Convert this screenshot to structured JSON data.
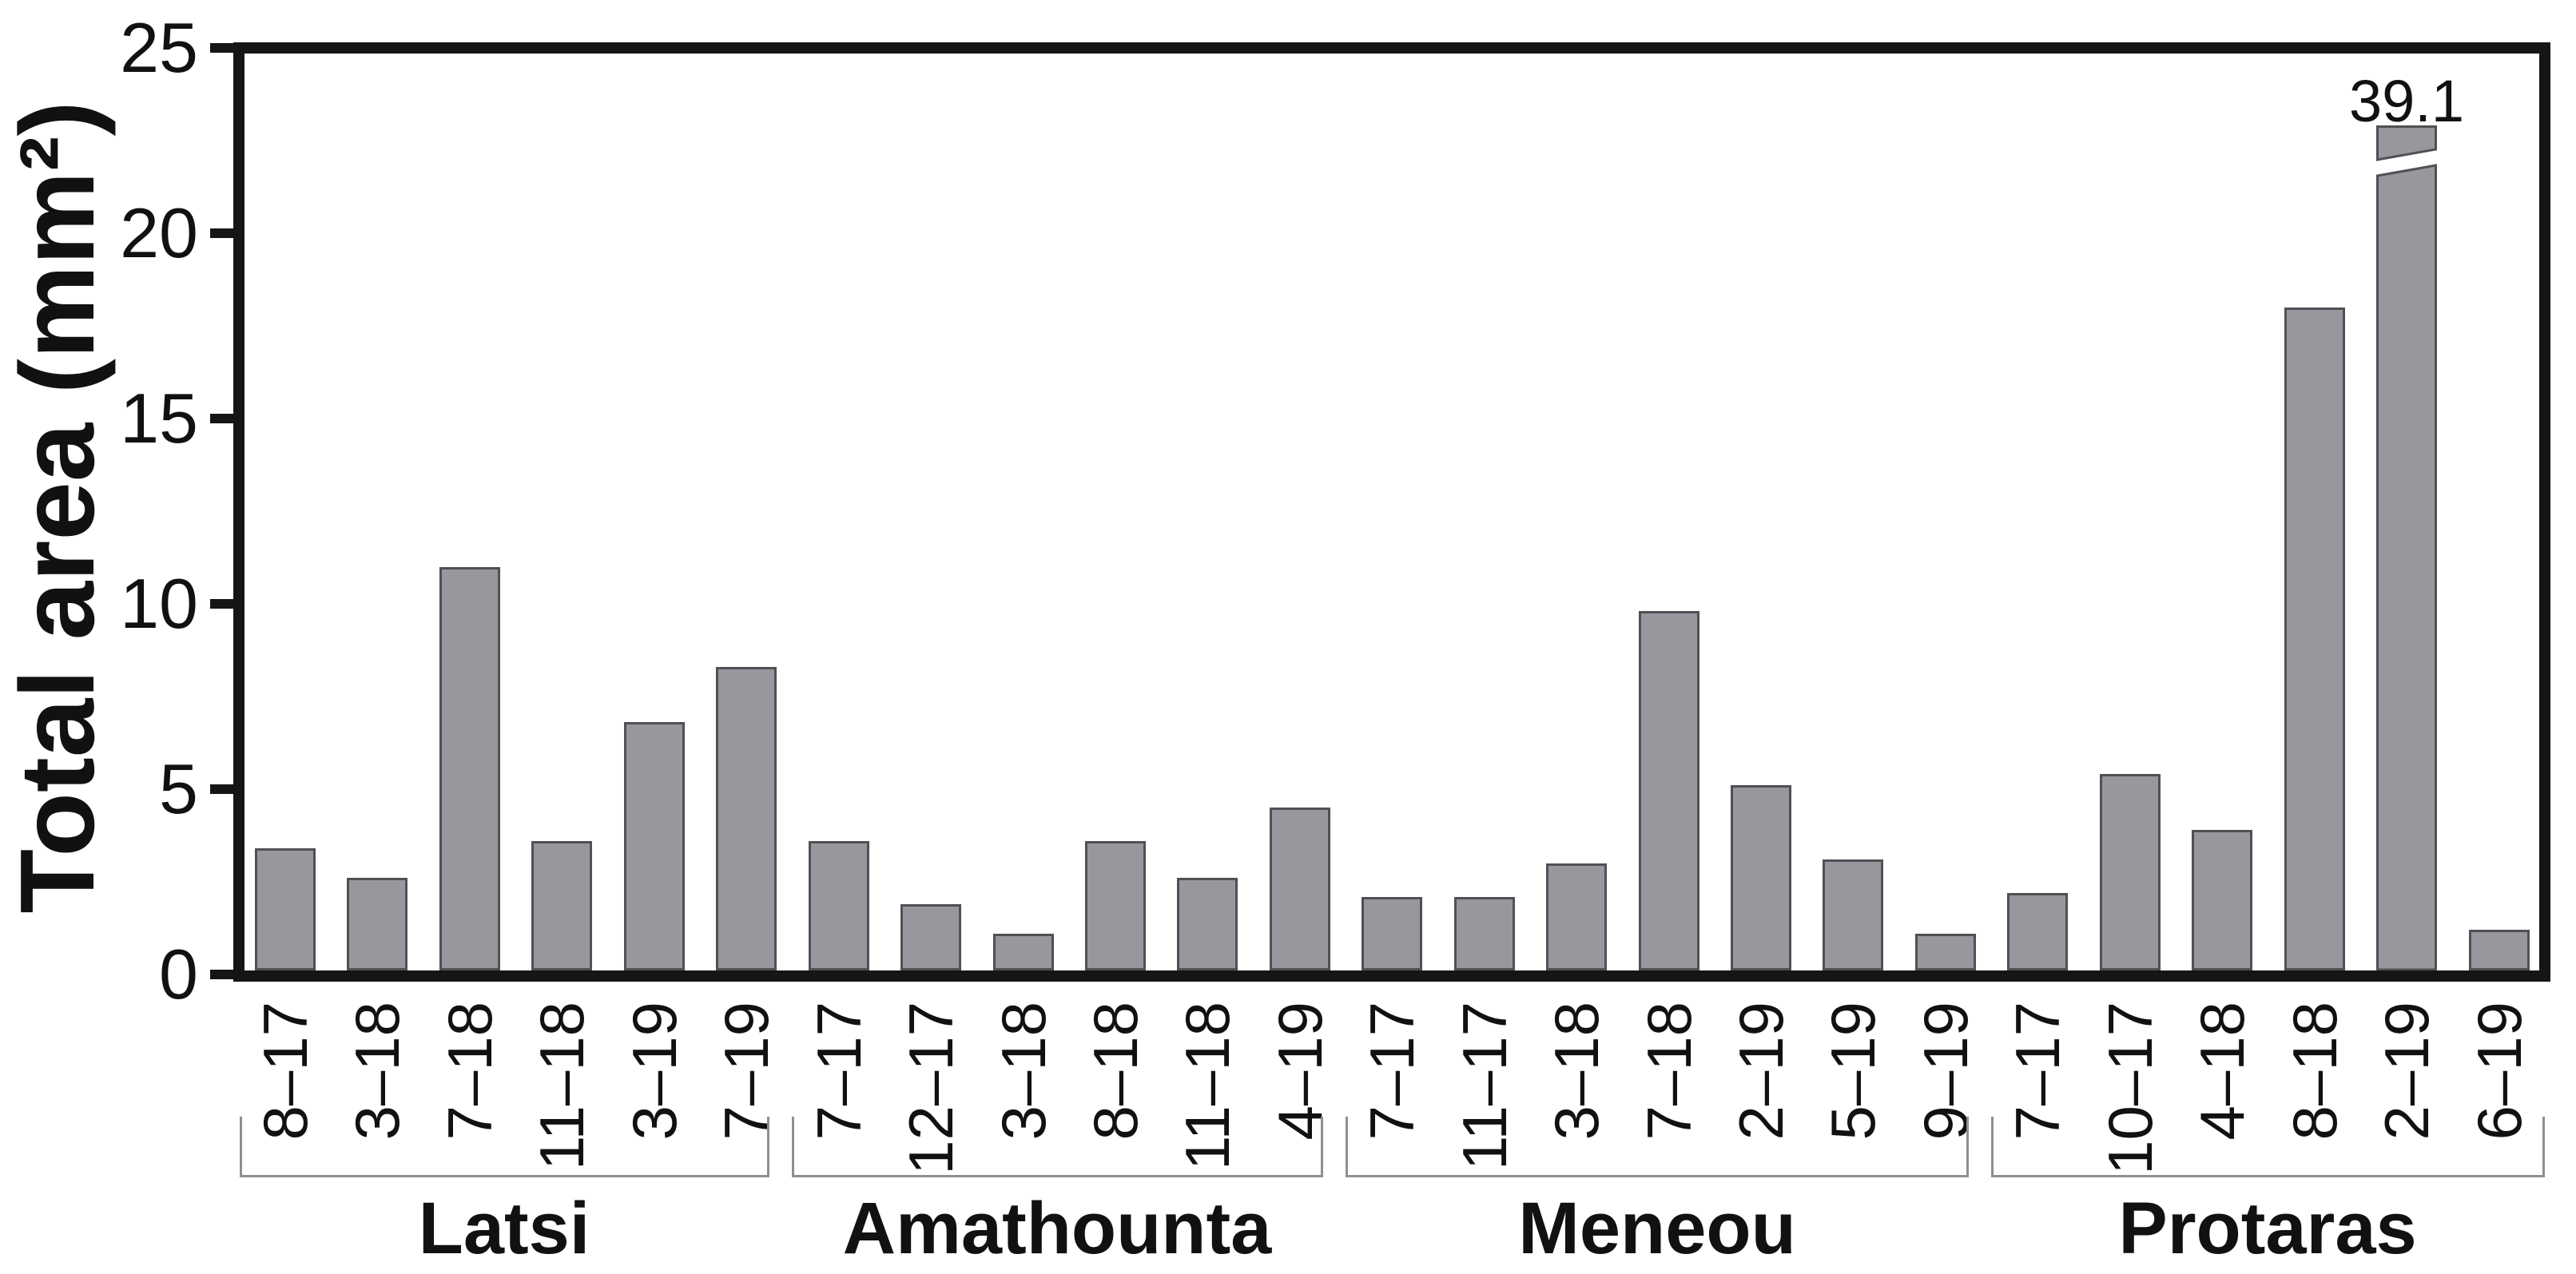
{
  "chart_data": {
    "type": "bar",
    "title": "",
    "ylabel": "Total area (mm²)",
    "xlabel": "",
    "ylim": [
      0,
      25
    ],
    "yticks": [
      0,
      5,
      10,
      15,
      20,
      25
    ],
    "grid": false,
    "legend": false,
    "bar_fill_color": "#98979d",
    "bar_border_color": "#505055",
    "axis_color": "#151515",
    "bracket_color": "#8f8f8f",
    "groups": [
      {
        "name": "Latsi",
        "categories": [
          "8–17",
          "3–18",
          "7–18",
          "11–18",
          "3–19",
          "7–19"
        ],
        "values": [
          3.4,
          2.6,
          11.0,
          3.6,
          6.8,
          8.3
        ]
      },
      {
        "name": "Amathounta",
        "categories": [
          "7–17",
          "12–17",
          "3–18",
          "8–18",
          "11–18",
          "4–19"
        ],
        "values": [
          3.6,
          1.9,
          1.1,
          3.6,
          2.6,
          4.5
        ]
      },
      {
        "name": "Meneou",
        "categories": [
          "7–17",
          "11–17",
          "3–18",
          "7–18",
          "2–19",
          "5–19",
          "9–19"
        ],
        "values": [
          2.1,
          2.1,
          3.0,
          9.8,
          5.1,
          3.1,
          1.1
        ]
      },
      {
        "name": "Protaras",
        "categories": [
          "7–17",
          "10–17",
          "4–18",
          "8–18",
          "2–19",
          "6–19"
        ],
        "values": [
          2.2,
          5.4,
          3.9,
          18.0,
          39.1,
          1.2
        ]
      }
    ],
    "broken_bar": {
      "group": "Protaras",
      "category": "2–19",
      "value": 39.1,
      "label": "39.1",
      "drawn_top_mm2": 22.9,
      "note": "bar exceeds axis; drawn with diagonal break near top"
    }
  }
}
